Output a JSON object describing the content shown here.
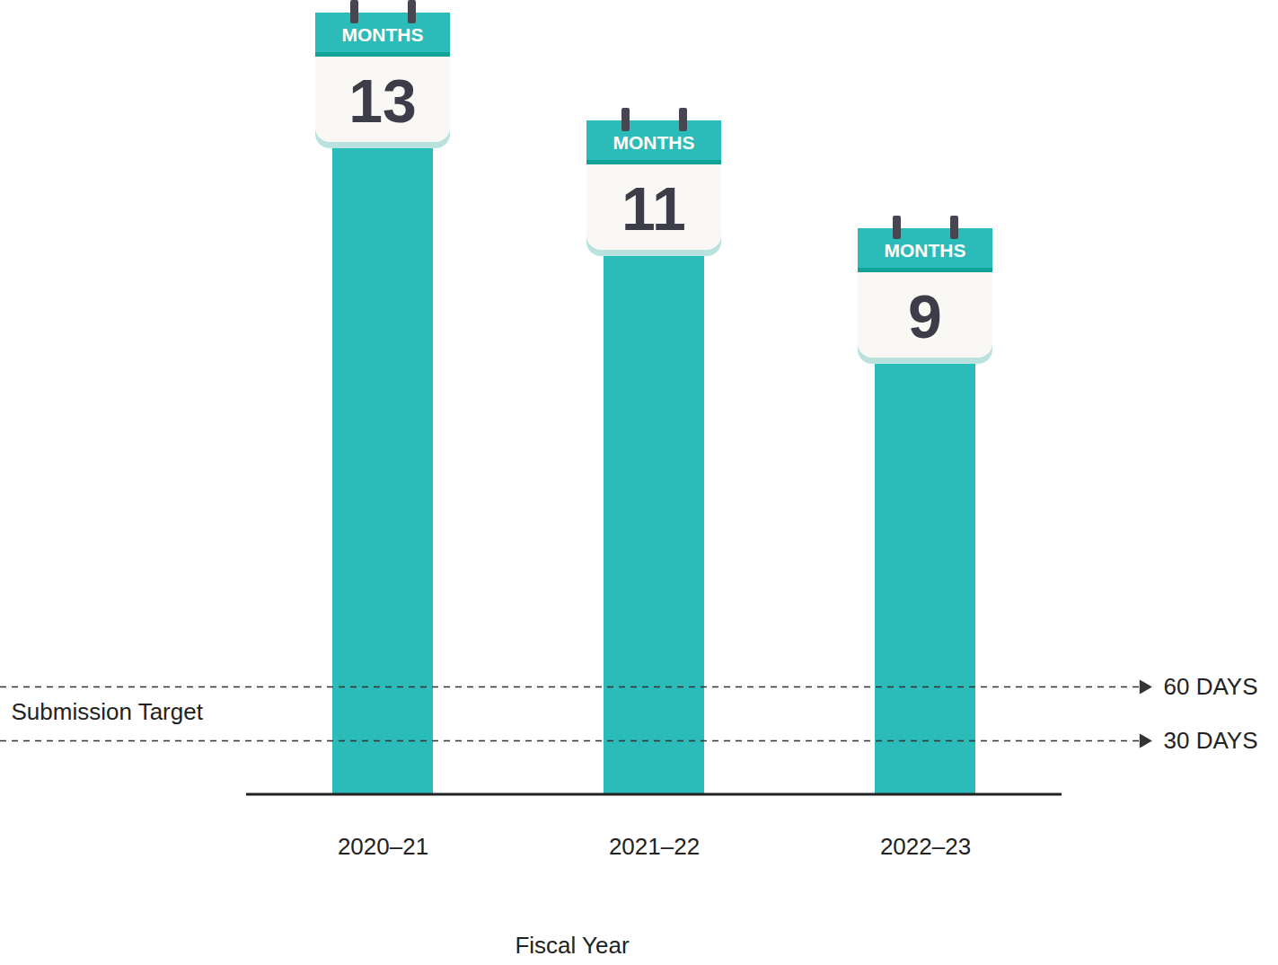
{
  "chart_data": {
    "type": "bar",
    "categories": [
      "2020–21",
      "2021–22",
      "2022–23"
    ],
    "values": [
      13,
      11,
      9
    ],
    "color": "#2bbbb8",
    "data_labels": true,
    "data_label_unit": "MONTHS",
    "x_label": "Fiscal Year",
    "ylim": [
      0,
      14.5
    ],
    "tick_labels": "x",
    "reference_label": "Submission Target",
    "reference_lines": [
      {
        "value": 2,
        "label": "60 DAYS"
      },
      {
        "value": 1,
        "label": "30 DAYS"
      }
    ]
  }
}
